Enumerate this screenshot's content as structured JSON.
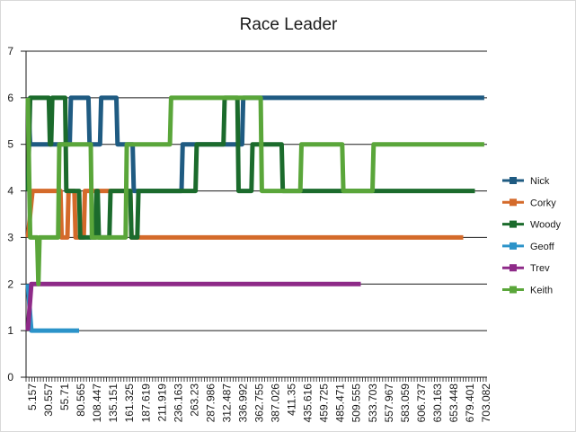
{
  "chart_data": {
    "type": "line",
    "title": "Race Leader",
    "xlabel": "",
    "ylabel": "",
    "ylim": [
      0,
      7
    ],
    "y_ticks": [
      "0",
      "1",
      "2",
      "3",
      "4",
      "5",
      "6",
      "7"
    ],
    "x_ticks": [
      "5.157",
      "30.557",
      "55.71",
      "80.565",
      "108.447",
      "135.151",
      "161.325",
      "187.619",
      "211.919",
      "236.163",
      "263.23",
      "287.986",
      "312.487",
      "336.992",
      "362.755",
      "387.026",
      "411.35",
      "435.616",
      "459.725",
      "485.471",
      "509.555",
      "533.703",
      "557.967",
      "583.059",
      "606.737",
      "630.163",
      "653.448",
      "679.401",
      "703.082"
    ],
    "grid": "horizontal",
    "legend_position": "right",
    "series": [
      {
        "name": "Nick",
        "color": "#1f5b82",
        "points": [
          [
            0,
            6
          ],
          [
            0.1,
            5
          ],
          [
            1.8,
            5
          ],
          [
            1.85,
            6
          ],
          [
            2.6,
            6
          ],
          [
            2.65,
            5
          ],
          [
            3.1,
            5
          ],
          [
            3.15,
            6
          ],
          [
            3.8,
            6
          ],
          [
            3.85,
            5
          ],
          [
            4.5,
            5
          ],
          [
            4.55,
            4
          ],
          [
            6.6,
            4
          ],
          [
            6.65,
            5
          ],
          [
            9.2,
            5
          ],
          [
            9.25,
            6
          ],
          [
            19.6,
            6
          ]
        ]
      },
      {
        "name": "Corky",
        "color": "#d46a2a",
        "points": [
          [
            0,
            3
          ],
          [
            0.2,
            4
          ],
          [
            1.4,
            4
          ],
          [
            1.45,
            3
          ],
          [
            1.7,
            3
          ],
          [
            1.75,
            4
          ],
          [
            2.0,
            4
          ],
          [
            2.05,
            3
          ],
          [
            2.4,
            3
          ],
          [
            2.45,
            4
          ],
          [
            4.4,
            4
          ],
          [
            4.45,
            3
          ],
          [
            18.7,
            3
          ]
        ]
      },
      {
        "name": "Woody",
        "color": "#1b6b2c",
        "points": [
          [
            0,
            4
          ],
          [
            0.1,
            6
          ],
          [
            0.9,
            6
          ],
          [
            0.95,
            5
          ],
          [
            1.0,
            5
          ],
          [
            1.05,
            6
          ],
          [
            1.6,
            6
          ],
          [
            1.65,
            4
          ],
          [
            2.2,
            4
          ],
          [
            2.25,
            3
          ],
          [
            2.9,
            3
          ],
          [
            2.95,
            4
          ],
          [
            3.0,
            4
          ],
          [
            3.05,
            3
          ],
          [
            3.5,
            3
          ],
          [
            3.55,
            4
          ],
          [
            4.4,
            4
          ],
          [
            4.45,
            3
          ],
          [
            4.7,
            3
          ],
          [
            4.75,
            4
          ],
          [
            7.2,
            4
          ],
          [
            7.25,
            5
          ],
          [
            8.4,
            5
          ],
          [
            8.45,
            6
          ],
          [
            9.0,
            6
          ],
          [
            9.05,
            4
          ],
          [
            9.6,
            4
          ],
          [
            9.65,
            5
          ],
          [
            10.9,
            5
          ],
          [
            10.95,
            4
          ],
          [
            19.2,
            4
          ]
        ]
      },
      {
        "name": "Geoff",
        "color": "#2b93c9",
        "points": [
          [
            0,
            2
          ],
          [
            0.15,
            1
          ],
          [
            2.2,
            1
          ]
        ]
      },
      {
        "name": "Trev",
        "color": "#8e2a88",
        "points": [
          [
            0,
            1
          ],
          [
            0.15,
            2
          ],
          [
            14.3,
            2
          ]
        ]
      },
      {
        "name": "Keith",
        "color": "#5aa63a",
        "points": [
          [
            0,
            6
          ],
          [
            0.1,
            3
          ],
          [
            0.4,
            3
          ],
          [
            0.45,
            2
          ],
          [
            0.5,
            3
          ],
          [
            1.3,
            3
          ],
          [
            1.35,
            5
          ],
          [
            2.7,
            5
          ],
          [
            2.75,
            3
          ],
          [
            4.2,
            3
          ],
          [
            4.25,
            5
          ],
          [
            6.1,
            5
          ],
          [
            6.15,
            6
          ],
          [
            10.0,
            6
          ],
          [
            10.05,
            4
          ],
          [
            11.7,
            4
          ],
          [
            11.75,
            5
          ],
          [
            13.5,
            5
          ],
          [
            13.55,
            4
          ],
          [
            14.8,
            4
          ],
          [
            14.85,
            5
          ],
          [
            19.6,
            5
          ]
        ]
      }
    ]
  }
}
